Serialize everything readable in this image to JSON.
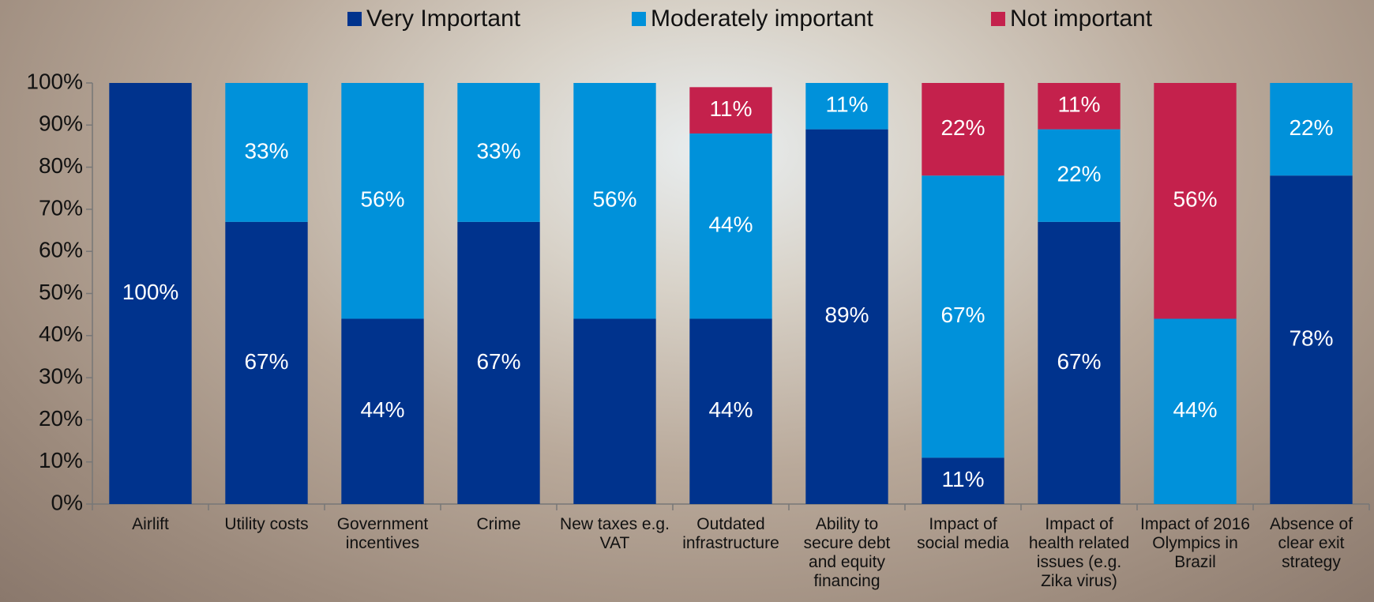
{
  "chart_data": {
    "type": "stacked_bar",
    "categories": [
      "Airlift",
      "Utility costs",
      "Government incentives",
      "Crime",
      "New taxes e.g. VAT",
      "Outdated infrastructure",
      "Ability to secure debt and equity financing",
      "Impact of social media",
      "Impact of health related issues (e.g. Zika virus)",
      "Impact of 2016 Olympics in Brazil",
      "Absence of clear exit strategy"
    ],
    "series": [
      {
        "name": "Very Important",
        "color": "#00338d",
        "values": [
          100,
          67,
          44,
          67,
          44,
          44,
          89,
          11,
          67,
          0,
          78
        ],
        "value_labels": [
          "100%",
          "67%",
          "44%",
          "67%",
          null,
          "44%",
          "89%",
          "11%",
          "67%",
          null,
          "78%"
        ]
      },
      {
        "name": "Moderately important",
        "color": "#0091da",
        "values": [
          0,
          33,
          56,
          33,
          56,
          44,
          11,
          67,
          22,
          44,
          22
        ],
        "value_labels": [
          null,
          "33%",
          "56%",
          "33%",
          "56%",
          "44%",
          "11%",
          "67%",
          "22%",
          "44%",
          "22%"
        ]
      },
      {
        "name": "Not important",
        "color": "#c4214c",
        "values": [
          0,
          0,
          0,
          0,
          0,
          11,
          0,
          22,
          11,
          56,
          0
        ],
        "value_labels": [
          null,
          null,
          null,
          null,
          null,
          "11%",
          null,
          "22%",
          "11%",
          "56%",
          null
        ]
      }
    ],
    "ylim": [
      0,
      100
    ],
    "yticks": [
      {
        "value": 0,
        "label": "0%"
      },
      {
        "value": 10,
        "label": "10%"
      },
      {
        "value": 20,
        "label": "20%"
      },
      {
        "value": 30,
        "label": "30%"
      },
      {
        "value": 40,
        "label": "40%"
      },
      {
        "value": 50,
        "label": "50%"
      },
      {
        "value": 60,
        "label": "60%"
      },
      {
        "value": 70,
        "label": "70%"
      },
      {
        "value": 80,
        "label": "80%"
      },
      {
        "value": 90,
        "label": "90%"
      },
      {
        "value": 100,
        "label": "100%"
      }
    ],
    "grid": false,
    "legend": "top"
  }
}
